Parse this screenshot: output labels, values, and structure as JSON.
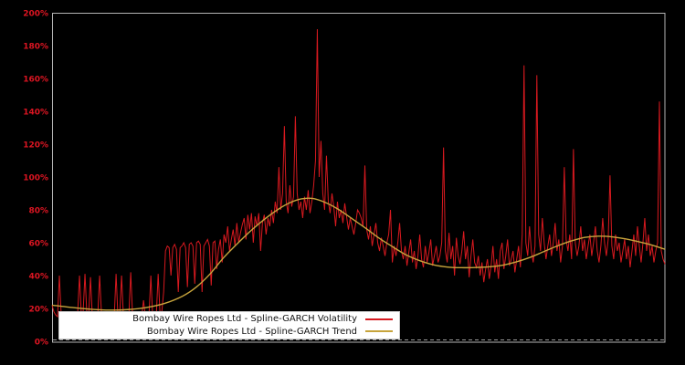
{
  "window": {
    "background": "#000000",
    "plot_border_color": "#b4b4b4",
    "zero_line_color": "#9a9a9a"
  },
  "chart_data": {
    "type": "line",
    "title": "",
    "xlabel": "",
    "ylabel": "",
    "ylim": [
      0,
      200
    ],
    "x_axis_labels_visible": false,
    "grid": "off (dashed gridline at 0% only)",
    "yticks": {
      "values": [
        0,
        20,
        40,
        60,
        80,
        100,
        120,
        140,
        160,
        180,
        200
      ],
      "labels": [
        "0%",
        "20%",
        "40%",
        "60%",
        "80%",
        "100%",
        "120%",
        "140%",
        "160%",
        "180%",
        "200%"
      ],
      "color": "#dd1522"
    },
    "legend": {
      "position": "bottom-left",
      "background": "#ffffff",
      "text_color": "#141414"
    },
    "series": [
      {
        "name": "Bombay Wire Ropes Ltd - Spline-GARCH Volatility",
        "color": "#d7191f",
        "unit": "percent",
        "x_spacing": "even",
        "values": [
          22,
          18,
          16,
          15,
          40,
          16,
          15,
          15,
          16,
          15,
          14,
          15,
          15,
          16,
          17,
          40,
          16,
          18,
          41,
          17,
          16,
          39,
          15,
          14,
          15,
          16,
          40,
          17,
          15,
          14,
          15,
          14,
          15,
          16,
          15,
          41,
          15,
          16,
          40,
          15,
          14,
          15,
          16,
          42,
          16,
          15,
          14,
          15,
          16,
          15,
          25,
          15,
          14,
          16,
          40,
          15,
          14,
          16,
          41,
          17,
          18,
          30,
          55,
          58,
          57,
          40,
          57,
          59,
          56,
          30,
          57,
          58,
          60,
          57,
          33,
          59,
          60,
          58,
          35,
          60,
          61,
          59,
          30,
          58,
          60,
          62,
          58,
          34,
          60,
          61,
          44,
          56,
          62,
          48,
          65,
          60,
          70,
          55,
          62,
          68,
          58,
          72,
          60,
          66,
          71,
          75,
          62,
          77,
          68,
          78,
          60,
          76,
          70,
          78,
          55,
          72,
          77,
          65,
          75,
          70,
          80,
          72,
          85,
          78,
          106,
          80,
          90,
          131,
          85,
          78,
          95,
          82,
          88,
          137,
          90,
          80,
          85,
          75,
          88,
          80,
          92,
          78,
          85,
          95,
          110,
          190,
          100,
          122,
          90,
          80,
          113,
          85,
          78,
          90,
          82,
          70,
          85,
          75,
          80,
          72,
          84,
          76,
          68,
          75,
          70,
          65,
          72,
          80,
          78,
          75,
          70,
          107,
          68,
          62,
          70,
          58,
          65,
          72,
          60,
          55,
          63,
          58,
          52,
          60,
          65,
          80,
          48,
          58,
          52,
          60,
          72,
          55,
          50,
          58,
          46,
          54,
          62,
          48,
          55,
          44,
          52,
          65,
          50,
          45,
          58,
          48,
          54,
          62,
          46,
          52,
          58,
          48,
          52,
          60,
          118,
          55,
          48,
          66,
          50,
          58,
          40,
          63,
          52,
          47,
          55,
          67,
          50,
          58,
          39,
          52,
          62,
          48,
          45,
          52,
          40,
          48,
          36,
          44,
          50,
          38,
          46,
          58,
          42,
          50,
          38,
          55,
          60,
          44,
          52,
          62,
          46,
          50,
          55,
          42,
          50,
          58,
          45,
          65,
          168,
          60,
          52,
          70,
          55,
          48,
          58,
          162,
          65,
          55,
          75,
          60,
          50,
          58,
          65,
          52,
          60,
          72,
          55,
          62,
          48,
          58,
          106,
          62,
          55,
          65,
          50,
          117,
          60,
          52,
          58,
          70,
          55,
          62,
          50,
          58,
          65,
          52,
          60,
          70,
          55,
          48,
          58,
          75,
          60,
          52,
          62,
          101,
          58,
          50,
          65,
          55,
          60,
          48,
          55,
          62,
          50,
          58,
          45,
          55,
          65,
          52,
          70,
          58,
          48,
          60,
          75,
          55,
          65,
          52,
          58,
          48,
          55,
          60,
          146,
          55,
          50,
          47
        ]
      },
      {
        "name": "Bombay Wire Ropes Ltd - Spline-GARCH Trend",
        "color": "#c7a43c",
        "unit": "percent",
        "points": [
          [
            0,
            22
          ],
          [
            23,
            20.5
          ],
          [
            43,
            19.5
          ],
          [
            63,
            19
          ],
          [
            83,
            19.3
          ],
          [
            103,
            20.5
          ],
          [
            123,
            23
          ],
          [
            143,
            27.5
          ],
          [
            158,
            33
          ],
          [
            173,
            41
          ],
          [
            188,
            51
          ],
          [
            203,
            59.5
          ],
          [
            218,
            67.5
          ],
          [
            233,
            74.5
          ],
          [
            248,
            80.5
          ],
          [
            261,
            84.5
          ],
          [
            273,
            86.7
          ],
          [
            285,
            87
          ],
          [
            298,
            84.8
          ],
          [
            313,
            80.5
          ],
          [
            328,
            74.8
          ],
          [
            343,
            69
          ],
          [
            358,
            62.8
          ],
          [
            373,
            57.5
          ],
          [
            388,
            52.5
          ],
          [
            403,
            49
          ],
          [
            418,
            46.5
          ],
          [
            433,
            45.2
          ],
          [
            448,
            44.8
          ],
          [
            463,
            44.9
          ],
          [
            478,
            45.3
          ],
          [
            493,
            46.3
          ],
          [
            508,
            48.3
          ],
          [
            523,
            51
          ],
          [
            538,
            54.5
          ],
          [
            553,
            58
          ],
          [
            568,
            61
          ],
          [
            583,
            63.2
          ],
          [
            598,
            64
          ],
          [
            613,
            63.6
          ],
          [
            628,
            62.3
          ],
          [
            643,
            60.5
          ],
          [
            657,
            58.5
          ],
          [
            671,
            56
          ]
        ]
      }
    ]
  }
}
